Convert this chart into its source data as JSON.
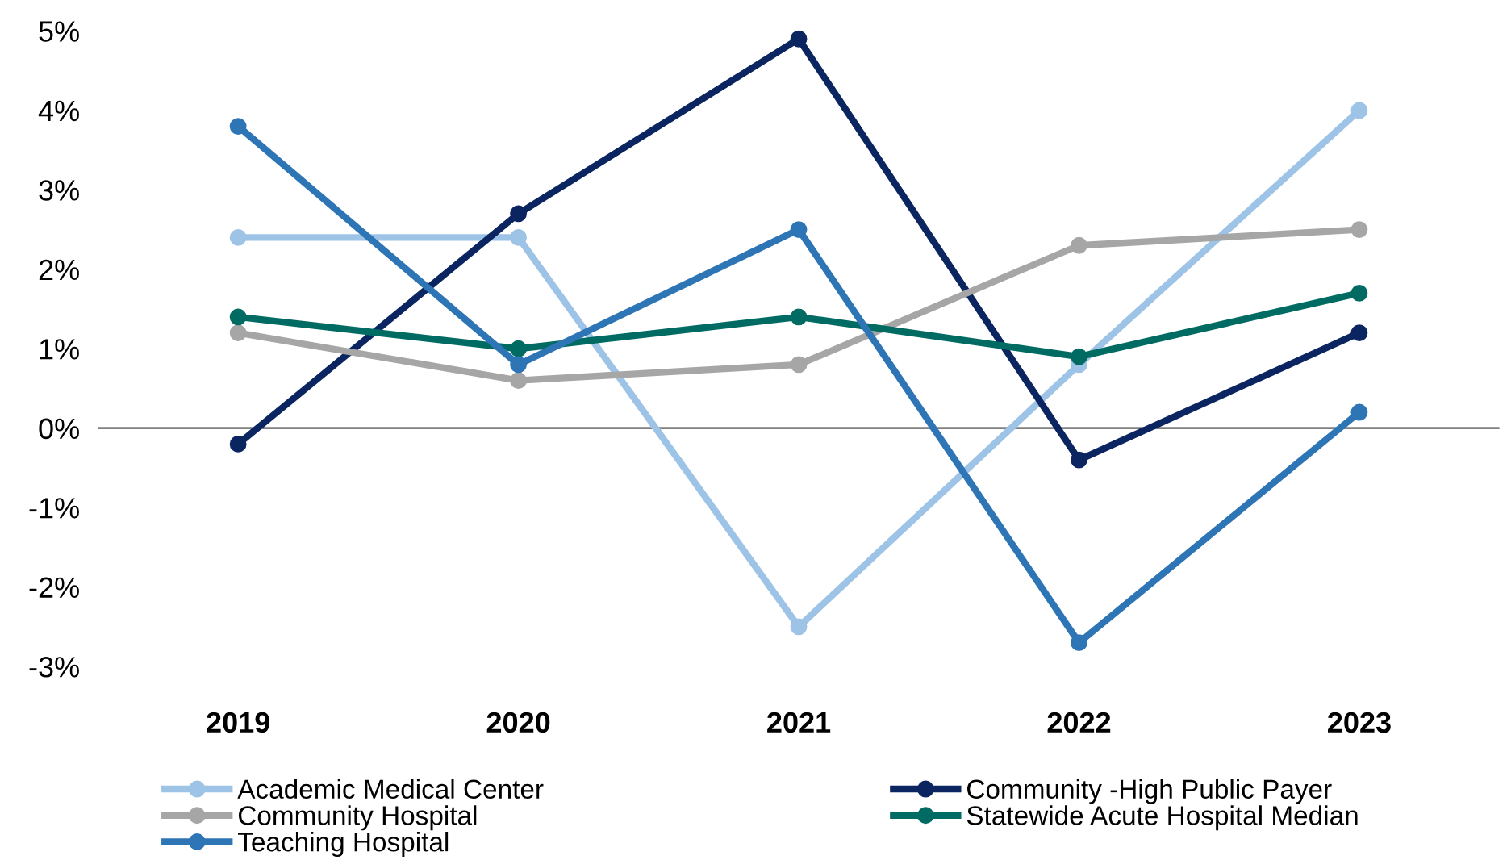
{
  "chart_data": {
    "type": "line",
    "categories": [
      "2019",
      "2020",
      "2021",
      "2022",
      "2023"
    ],
    "series": [
      {
        "name": "Academic Medical Center",
        "color": "#9dc3e6",
        "values": [
          2.4,
          2.4,
          -2.5,
          0.8,
          4.0
        ]
      },
      {
        "name": "Community -High Public Payer",
        "color": "#0b2560",
        "values": [
          -0.2,
          2.7,
          4.9,
          -0.4,
          1.2
        ]
      },
      {
        "name": "Community Hospital",
        "color": "#a6a6a6",
        "values": [
          1.2,
          0.6,
          0.8,
          2.3,
          2.5
        ]
      },
      {
        "name": "Statewide Acute Hospital Median",
        "color": "#006b63",
        "values": [
          1.4,
          1.0,
          1.4,
          0.9,
          1.7
        ]
      },
      {
        "name": "Teaching Hospital",
        "color": "#2e75b6",
        "values": [
          3.8,
          0.8,
          2.5,
          -2.7,
          0.2
        ]
      }
    ],
    "ylim": [
      -3,
      5
    ],
    "yticks": [
      {
        "value": -3,
        "label": "-3%"
      },
      {
        "value": -2,
        "label": "-2%"
      },
      {
        "value": -1,
        "label": "-1%"
      },
      {
        "value": 0,
        "label": "0%"
      },
      {
        "value": 1,
        "label": "1%"
      },
      {
        "value": 2,
        "label": "2%"
      },
      {
        "value": 3,
        "label": "3%"
      },
      {
        "value": 4,
        "label": "4%"
      },
      {
        "value": 5,
        "label": "5%"
      }
    ],
    "ref_lines": [
      {
        "axis": "y",
        "value": 0,
        "color": "#808080"
      }
    ],
    "marker": "circle",
    "line_style": "solid",
    "grid": false,
    "legend": "bottom"
  }
}
